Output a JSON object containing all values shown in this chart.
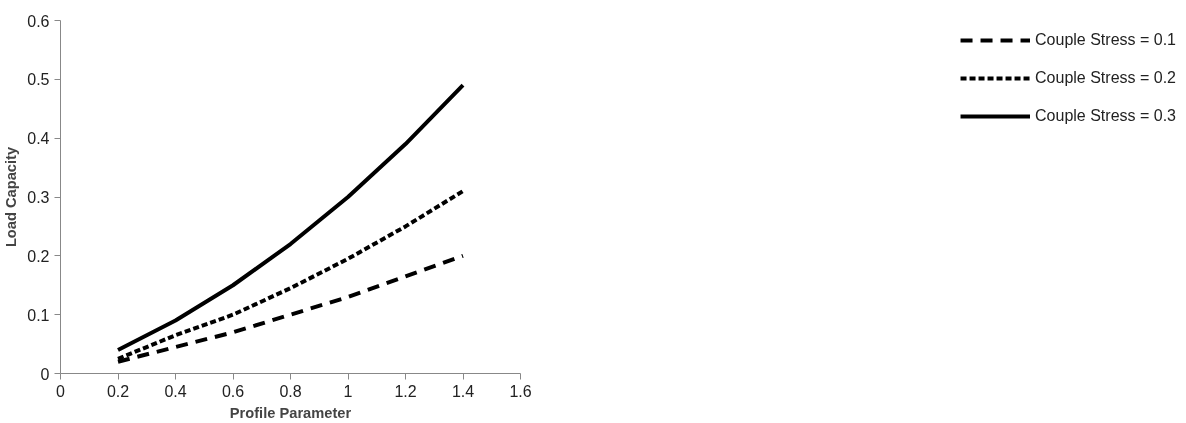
{
  "chart_data": {
    "type": "line",
    "xlabel": "Profile Parameter",
    "ylabel": "Load Capacity",
    "x": [
      0.2,
      0.4,
      0.6,
      0.8,
      1.0,
      1.2,
      1.4
    ],
    "series": [
      {
        "name": "Couple Stress = 0.1",
        "color": "#000000",
        "line_style": "dashed",
        "values": [
          0.02,
          0.045,
          0.07,
          0.1,
          0.13,
          0.165,
          0.2
        ]
      },
      {
        "name": "Couple Stress = 0.2",
        "color": "#000000",
        "line_style": "dotted",
        "values": [
          0.025,
          0.065,
          0.1,
          0.145,
          0.195,
          0.25,
          0.31
        ]
      },
      {
        "name": "Couple Stress = 0.3",
        "color": "#000000",
        "line_style": "solid",
        "values": [
          0.04,
          0.09,
          0.15,
          0.22,
          0.3,
          0.39,
          0.49
        ]
      }
    ],
    "xlim": [
      0,
      1.6
    ],
    "xticks": [
      0,
      0.2,
      0.4,
      0.6,
      0.8,
      1,
      1.2,
      1.4,
      1.6
    ],
    "ylim": [
      0,
      0.6
    ],
    "yticks": [
      0,
      0.1,
      0.2,
      0.3,
      0.4,
      0.5,
      0.6
    ],
    "grid": false,
    "legend": "right",
    "marker": "none"
  }
}
